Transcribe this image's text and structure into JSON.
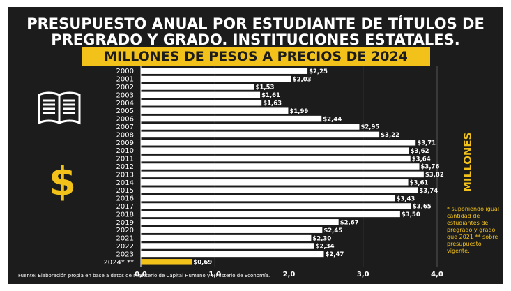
{
  "title_line1": "PRESUPUESTO ANUAL POR ESTUDIANTE DE TÍTULOS DE",
  "title_line2": "PREGRADO Y GRADO. INSTITUCIONES ESTATALES.",
  "subtitle": "MILLONES DE PESOS A PRECIOS DE 2024",
  "side_label": "MILLONES",
  "note": "* suponiendo igual cantidad de estudiantes de pregrado y grado que 2021 ** sobre presupuesto vigente.",
  "source": "Fuente: Elaboración propia en base a datos de Ministerio de Capital Humano y Ministerio de Economía.",
  "icons": [
    "book-icon",
    "dollar-icon"
  ],
  "dollar_symbol": "$",
  "colors": {
    "background": "#1c1c1c",
    "bar": "#ffffff",
    "highlight": "#f2c21b",
    "text": "#ffffff"
  },
  "chart_data": {
    "type": "bar",
    "orientation": "horizontal",
    "categories": [
      "2000",
      "2001",
      "2002",
      "2003",
      "2004",
      "2005",
      "2006",
      "2007",
      "2008",
      "2009",
      "2010",
      "2011",
      "2012",
      "2013",
      "2014",
      "2015",
      "2016",
      "2017",
      "2018",
      "2019",
      "2020",
      "2021",
      "2022",
      "2023",
      "2024* **"
    ],
    "values": [
      2.25,
      2.03,
      1.53,
      1.61,
      1.63,
      1.99,
      2.44,
      2.95,
      3.22,
      3.71,
      3.62,
      3.64,
      3.76,
      3.82,
      3.61,
      3.74,
      3.43,
      3.65,
      3.5,
      2.67,
      2.45,
      2.3,
      2.34,
      2.47,
      0.69
    ],
    "value_labels": [
      "$2,25",
      "$2,03",
      "$1,53",
      "$1,61",
      "$1,63",
      "$1,99",
      "$2,44",
      "$2,95",
      "$3,22",
      "$3,71",
      "$3,62",
      "$3,64",
      "$3,76",
      "$3,82",
      "$3,61",
      "$3,74",
      "$3,43",
      "$3,65",
      "$3,50",
      "$2,67",
      "$2,45",
      "$2,30",
      "$2,34",
      "$2,47",
      "$0,69"
    ],
    "highlight_category": "2024* **",
    "x_ticks": [
      "0,0",
      "1,0",
      "2,0",
      "3,0",
      "4,0"
    ],
    "xlim": [
      0,
      4
    ],
    "grid": true
  }
}
